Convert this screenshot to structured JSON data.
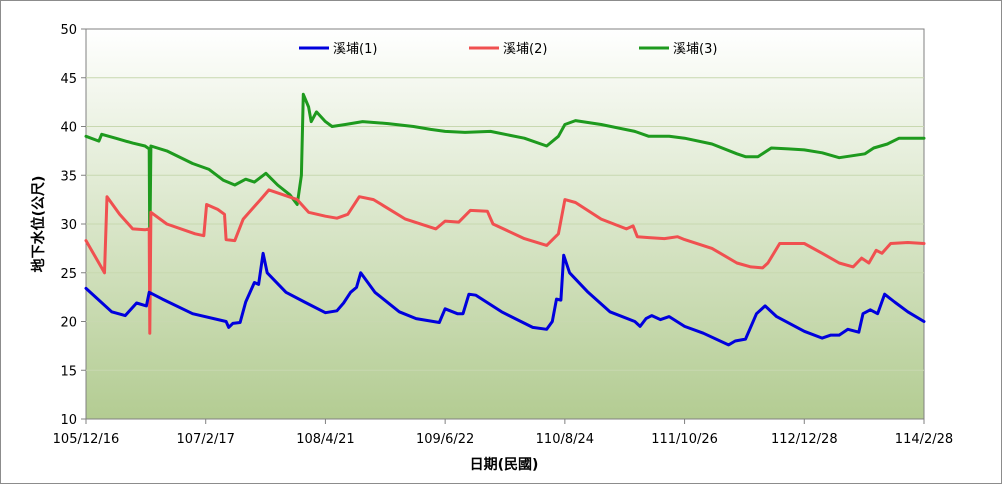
{
  "chart_data": {
    "type": "line",
    "title": "",
    "xlabel": "日期(民國)",
    "ylabel": "地下水位(公尺)",
    "ylim": [
      10,
      50
    ],
    "yticks": [
      10,
      15,
      20,
      25,
      30,
      35,
      40,
      45,
      50
    ],
    "xlim": [
      "105/12/16",
      "114/2/28"
    ],
    "xticks": [
      "105/12/16",
      "107/2/17",
      "108/4/21",
      "109/6/22",
      "110/8/24",
      "111/10/26",
      "112/12/28",
      "114/2/28"
    ],
    "grid": true,
    "legend_position": "top",
    "series": [
      {
        "name": "溪埔(1)",
        "color": "#0000dd",
        "points": [
          [
            "105/12/16",
            23.4
          ],
          [
            "106/1/31",
            22.2
          ],
          [
            "106/3/18",
            21.0
          ],
          [
            "106/5/5",
            20.6
          ],
          [
            "106/6/15",
            21.9
          ],
          [
            "106/7/20",
            21.6
          ],
          [
            "106/7/30",
            23.0
          ],
          [
            "106/9/15",
            22.3
          ],
          [
            "107/1/1",
            20.8
          ],
          [
            "107/5/1",
            20.0
          ],
          [
            "107/5/10",
            19.4
          ],
          [
            "107/5/25",
            19.8
          ],
          [
            "107/6/20",
            19.9
          ],
          [
            "107/7/10",
            22.0
          ],
          [
            "107/8/10",
            24.0
          ],
          [
            "107/8/25",
            23.8
          ],
          [
            "107/9/10",
            27.0
          ],
          [
            "107/9/25",
            25.0
          ],
          [
            "107/12/1",
            23.0
          ],
          [
            "108/2/5",
            22.0
          ],
          [
            "108/4/21",
            20.9
          ],
          [
            "108/6/1",
            21.1
          ],
          [
            "108/6/25",
            21.9
          ],
          [
            "108/7/20",
            23.0
          ],
          [
            "108/8/10",
            23.5
          ],
          [
            "108/8/25",
            25.0
          ],
          [
            "108/10/15",
            23.0
          ],
          [
            "109/1/10",
            21.0
          ],
          [
            "109/3/10",
            20.3
          ],
          [
            "109/6/1",
            19.9
          ],
          [
            "109/6/22",
            21.3
          ],
          [
            "109/8/5",
            20.8
          ],
          [
            "109/8/25",
            20.8
          ],
          [
            "109/9/15",
            22.8
          ],
          [
            "109/10/10",
            22.7
          ],
          [
            "110/1/10",
            21.0
          ],
          [
            "110/5/1",
            19.4
          ],
          [
            "110/6/20",
            19.2
          ],
          [
            "110/7/10",
            20.0
          ],
          [
            "110/7/25",
            22.3
          ],
          [
            "110/8/10",
            22.2
          ],
          [
            "110/8/20",
            26.8
          ],
          [
            "110/9/10",
            25.0
          ],
          [
            "110/11/15",
            23.0
          ],
          [
            "111/2/1",
            21.0
          ],
          [
            "111/5/1",
            20.0
          ],
          [
            "111/5/20",
            19.5
          ],
          [
            "111/6/10",
            20.3
          ],
          [
            "111/7/1",
            20.6
          ],
          [
            "111/8/1",
            20.2
          ],
          [
            "111/9/1",
            20.5
          ],
          [
            "111/10/26",
            19.5
          ],
          [
            "112/1/1",
            18.8
          ],
          [
            "112/4/1",
            17.6
          ],
          [
            "112/4/25",
            18.0
          ],
          [
            "112/6/1",
            18.2
          ],
          [
            "112/7/10",
            20.8
          ],
          [
            "112/8/10",
            21.6
          ],
          [
            "112/9/20",
            20.5
          ],
          [
            "112/12/28",
            19.0
          ],
          [
            "113/3/1",
            18.3
          ],
          [
            "113/4/1",
            18.6
          ],
          [
            "113/5/1",
            18.6
          ],
          [
            "113/6/1",
            19.2
          ],
          [
            "113/7/10",
            18.9
          ],
          [
            "113/7/25",
            20.8
          ],
          [
            "113/8/20",
            21.2
          ],
          [
            "113/9/15",
            20.8
          ],
          [
            "113/10/10",
            22.8
          ],
          [
            "113/11/15",
            22.0
          ],
          [
            "114/1/1",
            21.0
          ],
          [
            "114/2/28",
            20.0
          ]
        ]
      },
      {
        "name": "溪埔(2)",
        "color": "#f05050",
        "points": [
          [
            "105/12/16",
            28.3
          ],
          [
            "106/2/20",
            25.0
          ],
          [
            "106/3/1",
            32.8
          ],
          [
            "106/4/15",
            31.0
          ],
          [
            "106/6/1",
            29.5
          ],
          [
            "106/7/15",
            29.4
          ],
          [
            "106/7/30",
            29.5
          ],
          [
            "106/8/1",
            18.8
          ],
          [
            "106/8/5",
            31.2
          ],
          [
            "106/10/1",
            30.0
          ],
          [
            "107/1/10",
            29.0
          ],
          [
            "107/2/10",
            28.8
          ],
          [
            "107/2/20",
            32.0
          ],
          [
            "107/4/1",
            31.5
          ],
          [
            "107/4/25",
            31.0
          ],
          [
            "107/5/1",
            28.4
          ],
          [
            "107/6/1",
            28.3
          ],
          [
            "107/7/1",
            30.5
          ],
          [
            "107/9/1",
            32.5
          ],
          [
            "107/10/1",
            33.5
          ],
          [
            "108/1/10",
            32.5
          ],
          [
            "108/2/20",
            31.2
          ],
          [
            "108/4/21",
            30.8
          ],
          [
            "108/6/1",
            30.6
          ],
          [
            "108/7/10",
            31.0
          ],
          [
            "108/8/20",
            32.8
          ],
          [
            "108/10/10",
            32.5
          ],
          [
            "109/2/1",
            30.5
          ],
          [
            "109/5/20",
            29.5
          ],
          [
            "109/6/22",
            30.3
          ],
          [
            "109/8/10",
            30.2
          ],
          [
            "109/9/20",
            31.4
          ],
          [
            "109/11/20",
            31.3
          ],
          [
            "109/12/10",
            30.0
          ],
          [
            "110/4/1",
            28.5
          ],
          [
            "110/6/20",
            27.8
          ],
          [
            "110/8/1",
            29.0
          ],
          [
            "110/8/24",
            32.5
          ],
          [
            "110/10/1",
            32.2
          ],
          [
            "111/1/1",
            30.5
          ],
          [
            "111/4/1",
            29.5
          ],
          [
            "111/4/25",
            29.8
          ],
          [
            "111/5/10",
            28.7
          ],
          [
            "111/6/20",
            28.6
          ],
          [
            "111/8/15",
            28.5
          ],
          [
            "111/10/1",
            28.7
          ],
          [
            "111/10/26",
            28.4
          ],
          [
            "112/2/1",
            27.5
          ],
          [
            "112/5/1",
            26.0
          ],
          [
            "112/6/20",
            25.6
          ],
          [
            "112/8/1",
            25.5
          ],
          [
            "112/8/20",
            26.0
          ],
          [
            "112/10/1",
            28.0
          ],
          [
            "112/12/28",
            28.0
          ],
          [
            "113/3/1",
            27.0
          ],
          [
            "113/5/1",
            26.0
          ],
          [
            "113/6/20",
            25.6
          ],
          [
            "113/7/20",
            26.5
          ],
          [
            "113/8/15",
            26.0
          ],
          [
            "113/9/10",
            27.3
          ],
          [
            "113/10/1",
            27.0
          ],
          [
            "113/11/1",
            28.0
          ],
          [
            "114/1/1",
            28.1
          ],
          [
            "114/2/28",
            28.0
          ]
        ]
      },
      {
        "name": "溪埔(3)",
        "color": "#1e9a1e",
        "points": [
          [
            "105/12/16",
            39.0
          ],
          [
            "106/1/31",
            38.5
          ],
          [
            "106/2/10",
            39.2
          ],
          [
            "106/4/1",
            38.8
          ],
          [
            "106/6/1",
            38.3
          ],
          [
            "106/7/15",
            38.0
          ],
          [
            "106/7/30",
            37.7
          ],
          [
            "106/8/1",
            27.5
          ],
          [
            "106/8/5",
            38.0
          ],
          [
            "106/10/1",
            37.5
          ],
          [
            "107/1/1",
            36.2
          ],
          [
            "107/3/1",
            35.6
          ],
          [
            "107/4/20",
            34.5
          ],
          [
            "107/6/1",
            34.0
          ],
          [
            "107/7/10",
            34.6
          ],
          [
            "107/8/10",
            34.3
          ],
          [
            "107/9/20",
            35.2
          ],
          [
            "107/11/1",
            34.0
          ],
          [
            "107/12/15",
            33.0
          ],
          [
            "108/1/10",
            32.0
          ],
          [
            "108/1/25",
            35.0
          ],
          [
            "108/2/1",
            43.3
          ],
          [
            "108/2/20",
            42.0
          ],
          [
            "108/3/1",
            40.5
          ],
          [
            "108/3/20",
            41.5
          ],
          [
            "108/4/21",
            40.5
          ],
          [
            "108/5/15",
            40.0
          ],
          [
            "108/7/1",
            40.2
          ],
          [
            "108/9/1",
            40.5
          ],
          [
            "108/12/1",
            40.3
          ],
          [
            "109/3/1",
            40.0
          ],
          [
            "109/5/1",
            39.7
          ],
          [
            "109/6/22",
            39.5
          ],
          [
            "109/9/1",
            39.4
          ],
          [
            "109/12/1",
            39.5
          ],
          [
            "110/4/1",
            38.8
          ],
          [
            "110/6/20",
            38.0
          ],
          [
            "110/8/1",
            39.0
          ],
          [
            "110/8/24",
            40.2
          ],
          [
            "110/10/1",
            40.6
          ],
          [
            "111/1/1",
            40.2
          ],
          [
            "111/5/1",
            39.5
          ],
          [
            "111/6/20",
            39.0
          ],
          [
            "111/9/1",
            39.0
          ],
          [
            "111/10/26",
            38.8
          ],
          [
            "112/2/1",
            38.2
          ],
          [
            "112/5/1",
            37.2
          ],
          [
            "112/6/1",
            36.9
          ],
          [
            "112/7/15",
            36.9
          ],
          [
            "112/9/1",
            37.8
          ],
          [
            "112/11/1",
            37.7
          ],
          [
            "112/12/28",
            37.6
          ],
          [
            "113/3/1",
            37.3
          ],
          [
            "113/5/1",
            36.8
          ],
          [
            "113/6/15",
            37.0
          ],
          [
            "113/8/1",
            37.2
          ],
          [
            "113/9/1",
            37.8
          ],
          [
            "113/10/20",
            38.2
          ],
          [
            "113/12/1",
            38.8
          ],
          [
            "114/2/28",
            38.8
          ]
        ]
      }
    ]
  }
}
